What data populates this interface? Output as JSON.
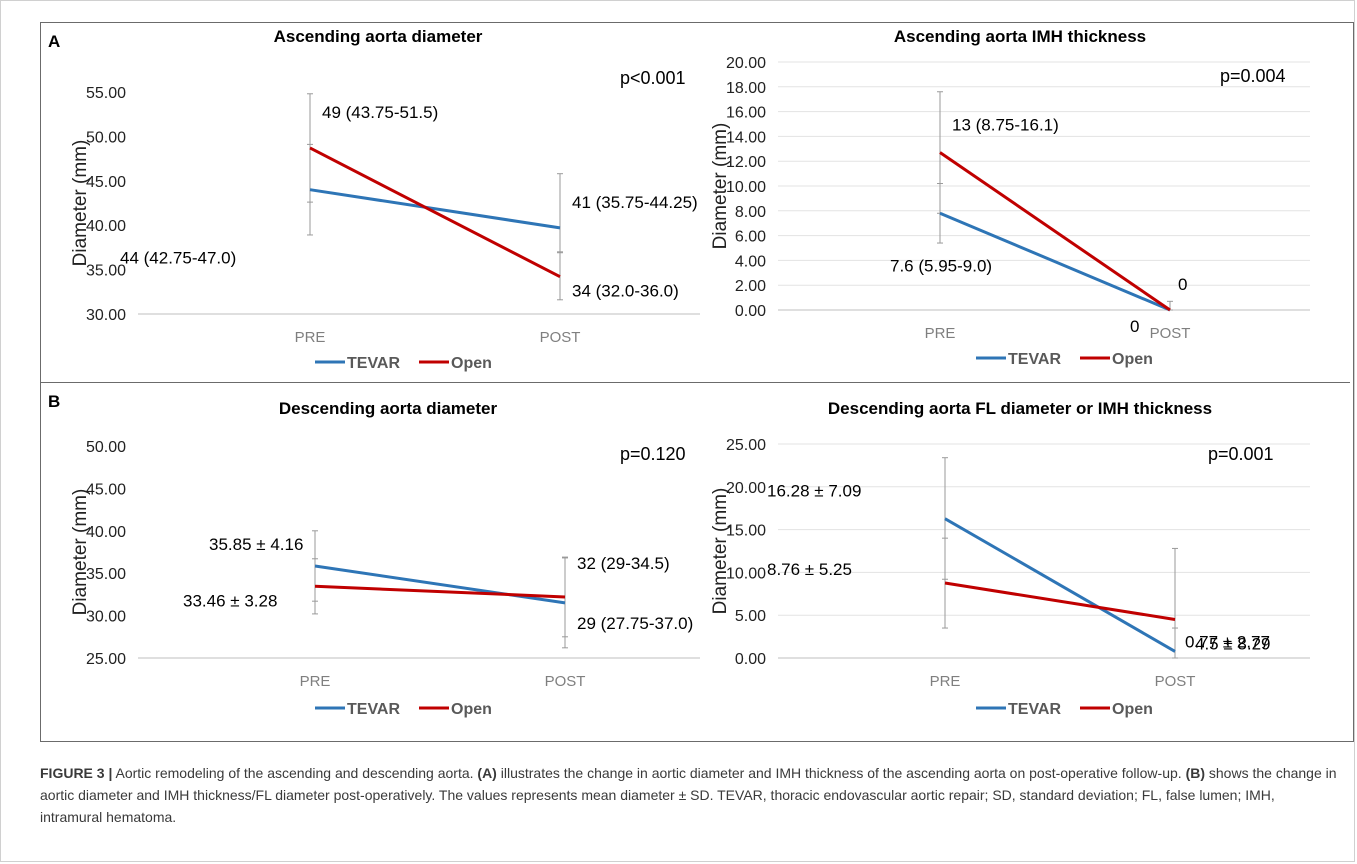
{
  "panels": {
    "a": "A",
    "b": "B"
  },
  "legend_colors": {
    "TEVAR": "#2e75b6",
    "Open": "#c00000"
  },
  "chart_data": [
    {
      "type": "line",
      "title": "Ascending aorta diameter",
      "ylabel": "Diameter (mm)",
      "categories": [
        "PRE",
        "POST"
      ],
      "ylim": [
        30,
        55
      ],
      "ytick_step": 5,
      "ytick_decimals": 2,
      "p_value": "p<0.001",
      "series": [
        {
          "name": "TEVAR",
          "values": [
            44,
            39.7
          ],
          "err_low": [
            38.9,
            36.9
          ],
          "err_high": [
            49.1,
            45.8
          ],
          "labels": [
            "44 (42.75-47.0)",
            "41 (35.75-44.25)"
          ]
        },
        {
          "name": "Open",
          "values": [
            48.7,
            34.2
          ],
          "err_low": [
            42.6,
            31.6
          ],
          "err_high": [
            54.8,
            37.0
          ],
          "labels": [
            "49 (43.75-51.5)",
            "34 (32.0-36.0)"
          ]
        }
      ],
      "legend": "bottom",
      "grid": false
    },
    {
      "type": "line",
      "title": "Ascending aorta IMH thickness",
      "ylabel": "Diameter (mm)",
      "categories": [
        "PRE",
        "POST"
      ],
      "ylim": [
        0,
        20
      ],
      "ytick_step": 2,
      "ytick_decimals": 2,
      "p_value": "p=0.004",
      "series": [
        {
          "name": "TEVAR",
          "values": [
            7.8,
            0
          ],
          "err_low": [
            5.4,
            0
          ],
          "err_high": [
            10.2,
            0.7
          ],
          "labels": [
            "7.6 (5.95-9.0)",
            "0"
          ]
        },
        {
          "name": "Open",
          "values": [
            12.7,
            0
          ],
          "err_low": [
            7.8,
            0
          ],
          "err_high": [
            17.6,
            0
          ],
          "labels": [
            "13 (8.75-16.1)",
            "0"
          ]
        }
      ],
      "legend": "bottom",
      "grid": true
    },
    {
      "type": "line",
      "title": "Descending aorta diameter",
      "ylabel": "Diameter (mm)",
      "categories": [
        "PRE",
        "POST"
      ],
      "ylim": [
        25,
        50
      ],
      "ytick_step": 5,
      "ytick_decimals": 2,
      "p_value": "p=0.120",
      "series": [
        {
          "name": "TEVAR",
          "values": [
            35.85,
            31.5
          ],
          "err_low": [
            31.7,
            26.2
          ],
          "err_high": [
            40.0,
            36.8
          ],
          "labels": [
            "35.85 ± 4.16",
            "29 (27.75-37.0)"
          ]
        },
        {
          "name": "Open",
          "values": [
            33.46,
            32.2
          ],
          "err_low": [
            30.2,
            27.5
          ],
          "err_high": [
            36.7,
            36.9
          ],
          "labels": [
            "33.46 ± 3.28",
            "32 (29-34.5)"
          ]
        }
      ],
      "legend": "bottom",
      "grid": false
    },
    {
      "type": "line",
      "title": "Descending aorta FL diameter or IMH thickness",
      "ylabel": "Diameter (mm)",
      "categories": [
        "PRE",
        "POST"
      ],
      "ylim": [
        0,
        25
      ],
      "ytick_step": 5,
      "ytick_decimals": 2,
      "p_value": "p=0.001",
      "series": [
        {
          "name": "TEVAR",
          "values": [
            16.28,
            0.77
          ],
          "err_low": [
            9.2,
            0
          ],
          "err_high": [
            23.4,
            3.5
          ],
          "labels": [
            "16.28 ± 7.09",
            "0.77 ± 2.77"
          ]
        },
        {
          "name": "Open",
          "values": [
            8.76,
            4.5
          ],
          "err_low": [
            3.5,
            0
          ],
          "err_high": [
            14.0,
            12.8
          ],
          "labels": [
            "8.76 ± 5.25",
            "4.5 ± 8.29"
          ]
        }
      ],
      "legend": "bottom",
      "grid": true
    }
  ],
  "caption": {
    "figure_label": "FIGURE 3 |",
    "part1": " Aortic remodeling of the ascending and descending aorta. ",
    "ref_a": "(A)",
    "part2": " illustrates the change in aortic diameter and IMH thickness of the ascending aorta on post-operative follow-up. ",
    "ref_b": "(B)",
    "part3": " shows the change in aortic diameter and IMH thickness/FL diameter post-operatively. The values represents mean diameter ± SD. TEVAR, thoracic endovascular aortic repair; SD, standard deviation; FL, false lumen; IMH, intramural hematoma."
  }
}
